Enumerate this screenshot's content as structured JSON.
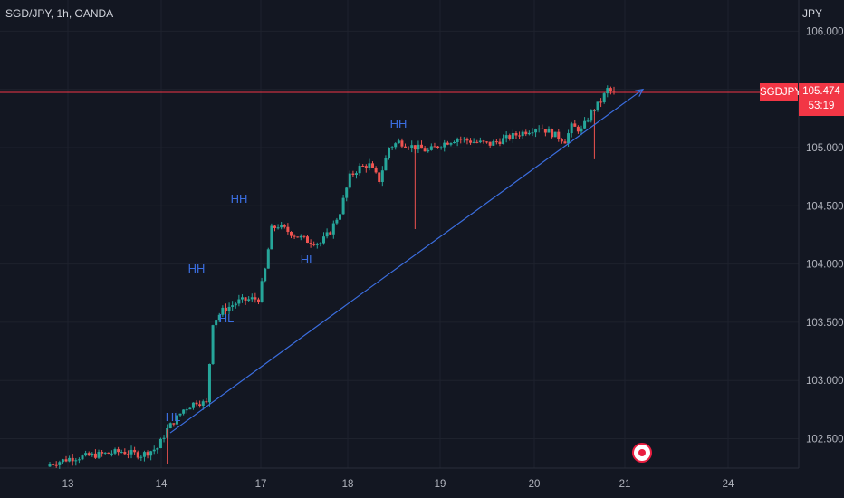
{
  "header": {
    "title": "SGD/JPY, 1h, OANDA",
    "unit": "JPY"
  },
  "last_price": {
    "symbol": "SGDJPY",
    "price": "105.474",
    "countdown": "53:19"
  },
  "colors": {
    "up": "#26a69a",
    "down": "#ef5350",
    "annotation": "#3b6ee0",
    "price_line": "#f23645"
  },
  "chart_data": {
    "type": "candlestick",
    "yticks": [
      "106.000",
      "105.500",
      "105.000",
      "104.500",
      "104.000",
      "103.500",
      "103.000",
      "102.500"
    ],
    "ylim": [
      102.25,
      106.1
    ],
    "xticks": [
      "13",
      "14",
      "17",
      "18",
      "19",
      "20",
      "21",
      "24"
    ],
    "bars": 180,
    "anchors": [
      [
        0,
        102.28
      ],
      [
        6,
        102.33
      ],
      [
        14,
        102.36
      ],
      [
        22,
        102.39
      ],
      [
        28,
        102.36
      ],
      [
        33,
        102.42
      ],
      [
        36,
        102.58
      ],
      [
        41,
        102.75
      ],
      [
        45,
        102.82
      ],
      [
        48,
        102.8
      ],
      [
        50,
        103.5
      ],
      [
        53,
        103.6
      ],
      [
        58,
        103.68
      ],
      [
        62,
        103.7
      ],
      [
        64,
        103.7
      ],
      [
        66,
        103.95
      ],
      [
        68,
        104.3
      ],
      [
        70,
        104.33
      ],
      [
        75,
        104.25
      ],
      [
        79,
        104.2
      ],
      [
        83,
        104.18
      ],
      [
        86,
        104.28
      ],
      [
        89,
        104.45
      ],
      [
        92,
        104.75
      ],
      [
        95,
        104.83
      ],
      [
        98,
        104.85
      ],
      [
        101,
        104.72
      ],
      [
        104,
        105.0
      ],
      [
        107,
        105.05
      ],
      [
        110,
        105.02
      ],
      [
        116,
        104.97
      ],
      [
        120,
        105.03
      ],
      [
        125,
        105.08
      ],
      [
        130,
        105.05
      ],
      [
        135,
        105.03
      ],
      [
        140,
        105.08
      ],
      [
        145,
        105.13
      ],
      [
        150,
        105.18
      ],
      [
        154,
        105.12
      ],
      [
        158,
        105.06
      ],
      [
        160,
        105.18
      ],
      [
        163,
        105.15
      ],
      [
        166,
        105.3
      ],
      [
        169,
        105.4
      ],
      [
        171,
        105.5
      ],
      [
        173,
        105.47
      ]
    ],
    "series": [
      {
        "points": [
          [
            14,
            102.55
          ],
          [
            17.2,
            105.5
          ]
        ],
        "style": "arrow"
      }
    ],
    "annotations": [
      {
        "text": "HL",
        "x": 14.05,
        "y": 102.78
      },
      {
        "text": "HH",
        "x": 14.35,
        "y": 103.9
      },
      {
        "text": "HL",
        "x": 14.7,
        "y": 103.5
      },
      {
        "text": "HH",
        "x": 14.75,
        "y": 104.5
      },
      {
        "text": "HL",
        "x": 17.45,
        "y": 104.0
      },
      {
        "text": "HH",
        "x": 18.55,
        "y": 105.13
      }
    ],
    "last_price": 105.474
  }
}
